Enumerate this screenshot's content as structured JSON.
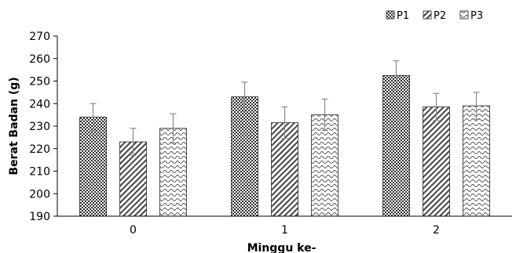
{
  "chart_data": {
    "type": "bar",
    "title": "",
    "xlabel": "Minggu ke-",
    "ylabel": "Berat Badan (g)",
    "ylim": [
      190,
      270
    ],
    "yticks": [
      190,
      200,
      210,
      220,
      230,
      240,
      250,
      260,
      270
    ],
    "categories": [
      "0",
      "1",
      "2"
    ],
    "legend_position": "top-right",
    "grid": false,
    "series": [
      {
        "name": "P1",
        "pattern": "checker",
        "values": [
          234,
          243,
          252.5
        ],
        "errors": [
          6,
          6.5,
          6.5
        ]
      },
      {
        "name": "P2",
        "pattern": "diagonal",
        "values": [
          223,
          231.5,
          238.5
        ],
        "errors": [
          6,
          7,
          6
        ]
      },
      {
        "name": "P3",
        "pattern": "wave",
        "values": [
          229,
          235,
          239
        ],
        "errors": [
          6.5,
          7,
          6
        ]
      }
    ]
  }
}
